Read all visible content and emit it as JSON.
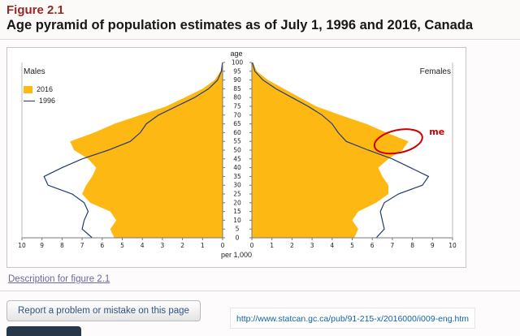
{
  "header": {
    "figure_label": "Figure 2.1",
    "title": "Age pyramid of population estimates as of July 1, 1996 and 2016, Canada"
  },
  "links": {
    "description": "Description for figure 2.1"
  },
  "footer": {
    "report_button": "Report a problem or mistake on this page",
    "url": "http://www.statcan.gc.ca/pub/91-215-x/2016000/i009-eng.htm"
  },
  "colors": {
    "figure_heading": "#942824",
    "description_link": "#6a6a9f",
    "url_link": "#0f62ac",
    "button_text": "#30557f",
    "dark_button": "#26374a",
    "area_2016": "#fdb813",
    "line_1996": "#253b6e",
    "annotation_red": "#cc0000"
  },
  "chart_data": {
    "type": "area",
    "title": "Age pyramid of population estimates as of July 1, 1996 and 2016, Canada",
    "center_axis_label": "age",
    "xlabel": "per 1,000",
    "left_panel_label": "Males",
    "right_panel_label": "Females",
    "x_range": [
      0,
      10
    ],
    "x_ticks": [
      0,
      1,
      2,
      3,
      4,
      5,
      6,
      7,
      8,
      9,
      10
    ],
    "age_ticks": [
      0,
      5,
      10,
      15,
      20,
      25,
      30,
      35,
      40,
      45,
      50,
      55,
      60,
      65,
      70,
      75,
      80,
      85,
      90,
      95,
      100
    ],
    "ages": [
      0,
      5,
      10,
      15,
      20,
      25,
      30,
      35,
      40,
      45,
      50,
      55,
      60,
      65,
      70,
      75,
      80,
      85,
      90,
      95,
      100
    ],
    "series": [
      {
        "name": "2016",
        "style": "area",
        "color": "#fdb813",
        "males": [
          5.4,
          5.6,
          5.3,
          5.6,
          6.6,
          7.0,
          6.8,
          6.5,
          6.3,
          6.7,
          7.4,
          7.6,
          6.4,
          5.4,
          4.1,
          2.8,
          1.9,
          1.0,
          0.4,
          0.1,
          0.02
        ],
        "females": [
          5.1,
          5.3,
          5.0,
          5.3,
          6.2,
          6.8,
          6.8,
          6.5,
          6.3,
          6.8,
          7.5,
          7.8,
          6.7,
          5.7,
          4.4,
          3.2,
          2.4,
          1.6,
          0.8,
          0.25,
          0.05
        ]
      },
      {
        "name": "1996",
        "style": "line",
        "color": "#253b6e",
        "males": [
          6.5,
          7.0,
          6.9,
          6.7,
          6.9,
          7.5,
          8.7,
          8.9,
          8.0,
          7.0,
          5.7,
          4.6,
          4.1,
          3.8,
          3.2,
          2.3,
          1.4,
          0.7,
          0.25,
          0.06,
          0.01
        ],
        "females": [
          6.2,
          6.6,
          6.5,
          6.4,
          6.6,
          7.3,
          8.5,
          8.8,
          7.9,
          7.0,
          5.8,
          4.7,
          4.3,
          4.0,
          3.5,
          2.8,
          2.0,
          1.2,
          0.55,
          0.15,
          0.03
        ]
      }
    ],
    "annotation": {
      "text": "me",
      "side": "females",
      "age": 55,
      "value": 7.3,
      "color": "#cc0000"
    },
    "legend_position": "top-left",
    "grid": false
  }
}
